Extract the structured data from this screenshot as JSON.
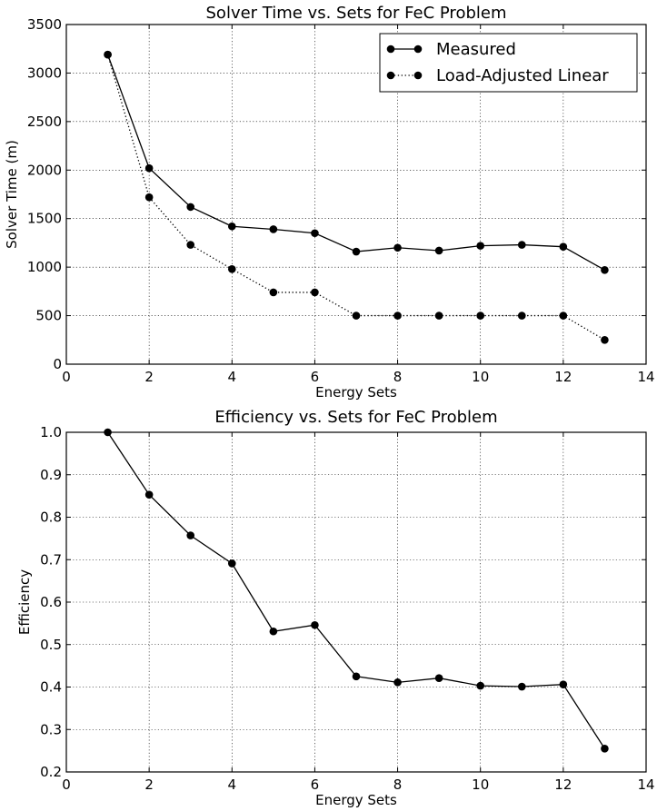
{
  "chart_data": [
    {
      "type": "line",
      "title": "Solver Time vs. Sets for FeC Problem",
      "xlabel": "Energy Sets",
      "ylabel": "Solver Time (m)",
      "xlim": [
        0,
        14
      ],
      "ylim": [
        0,
        3500
      ],
      "xticks": [
        "0",
        "2",
        "4",
        "6",
        "8",
        "10",
        "12",
        "14"
      ],
      "yticks": [
        "0",
        "500",
        "1000",
        "1500",
        "2000",
        "2500",
        "3000",
        "3500"
      ],
      "grid": true,
      "legend": "top-right",
      "x": [
        1,
        2,
        3,
        4,
        5,
        6,
        7,
        8,
        9,
        10,
        11,
        12,
        13
      ],
      "series": [
        {
          "name": "Measured",
          "style": "solid",
          "values": [
            3190,
            2020,
            1620,
            1420,
            1390,
            1350,
            1160,
            1200,
            1170,
            1220,
            1230,
            1210,
            970
          ]
        },
        {
          "name": "Load-Adjusted Linear",
          "style": "dotted",
          "values": [
            3190,
            1720,
            1230,
            980,
            740,
            740,
            500,
            500,
            500,
            500,
            500,
            500,
            250
          ]
        }
      ]
    },
    {
      "type": "line",
      "title": "Efficiency vs. Sets for FeC Problem",
      "xlabel": "Energy Sets",
      "ylabel": "Efficiency",
      "xlim": [
        0,
        14
      ],
      "ylim": [
        0.2,
        1.0
      ],
      "xticks": [
        "0",
        "2",
        "4",
        "6",
        "8",
        "10",
        "12",
        "14"
      ],
      "yticks": [
        "0.2",
        "0.3",
        "0.4",
        "0.5",
        "0.6",
        "0.7",
        "0.8",
        "0.9",
        "1.0"
      ],
      "grid": true,
      "x": [
        1,
        2,
        3,
        4,
        5,
        6,
        7,
        8,
        9,
        10,
        11,
        12,
        13
      ],
      "series": [
        {
          "style": "solid",
          "values": [
            1.0,
            0.853,
            0.757,
            0.691,
            0.531,
            0.546,
            0.425,
            0.411,
            0.421,
            0.403,
            0.401,
            0.406,
            0.255
          ]
        }
      ]
    }
  ],
  "colors": {
    "line": "#000000",
    "grid": "#000000",
    "background": "#ffffff"
  }
}
